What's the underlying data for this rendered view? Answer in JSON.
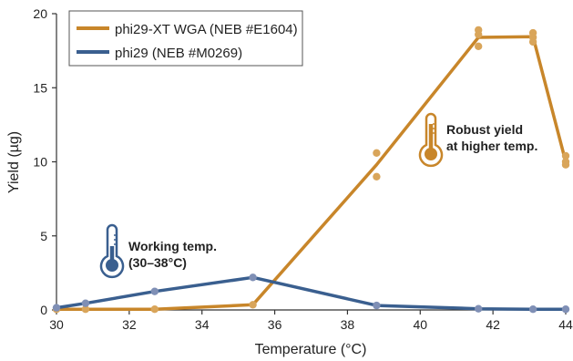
{
  "chart_data": {
    "type": "line",
    "xlabel": "Temperature (°C)",
    "ylabel": "Yield (µg)",
    "xlim": [
      30,
      44
    ],
    "ylim": [
      0,
      20
    ],
    "xticks": [
      "30",
      "32",
      "34",
      "36",
      "38",
      "40",
      "42",
      "44"
    ],
    "yticks": [
      "0",
      "5",
      "10",
      "15",
      "20"
    ],
    "grid": false,
    "legend_position": "top-left",
    "series": [
      {
        "name": "phi29-XT WGA (NEB #E1604)",
        "color": "#c8862a",
        "point_color": "#d9a55a",
        "line": [
          [
            30,
            0.05
          ],
          [
            30.8,
            0.05
          ],
          [
            32.7,
            0.05
          ],
          [
            35.4,
            0.35
          ],
          [
            38.8,
            9.8
          ],
          [
            41.6,
            18.4
          ],
          [
            43.1,
            18.45
          ],
          [
            44,
            10.0
          ]
        ],
        "points": [
          [
            30,
            0.05
          ],
          [
            30.8,
            0.05
          ],
          [
            32.7,
            0.05
          ],
          [
            35.4,
            0.35
          ],
          [
            38.8,
            10.6
          ],
          [
            38.8,
            9.0
          ],
          [
            41.6,
            18.9
          ],
          [
            41.6,
            18.6
          ],
          [
            41.6,
            17.8
          ],
          [
            43.1,
            18.7
          ],
          [
            43.1,
            18.4
          ],
          [
            43.1,
            18.1
          ],
          [
            44,
            10.4
          ],
          [
            44,
            10.0
          ],
          [
            44,
            9.8
          ]
        ]
      },
      {
        "name": "phi29 (NEB #M0269)",
        "color": "#3a5f8f",
        "point_color": "#7f8fb5",
        "line": [
          [
            30,
            0.15
          ],
          [
            30.8,
            0.45
          ],
          [
            32.7,
            1.25
          ],
          [
            35.4,
            2.2
          ],
          [
            38.8,
            0.3
          ],
          [
            41.6,
            0.08
          ],
          [
            43.1,
            0.05
          ],
          [
            44,
            0.05
          ]
        ],
        "points": [
          [
            30,
            0.15
          ],
          [
            30.8,
            0.45
          ],
          [
            32.7,
            1.25
          ],
          [
            35.4,
            2.2
          ],
          [
            38.8,
            0.3
          ],
          [
            41.6,
            0.08
          ],
          [
            43.1,
            0.05
          ],
          [
            44,
            0.05
          ]
        ]
      }
    ],
    "annotations": [
      {
        "id": "working",
        "lines": [
          "Working temp.",
          "(30–38°C)"
        ],
        "color": "#3a5f8f",
        "icon": "thermometer-low-icon"
      },
      {
        "id": "robust",
        "lines": [
          "Robust yield",
          "at higher temp."
        ],
        "color": "#c8862a",
        "icon": "thermometer-high-icon"
      }
    ]
  }
}
